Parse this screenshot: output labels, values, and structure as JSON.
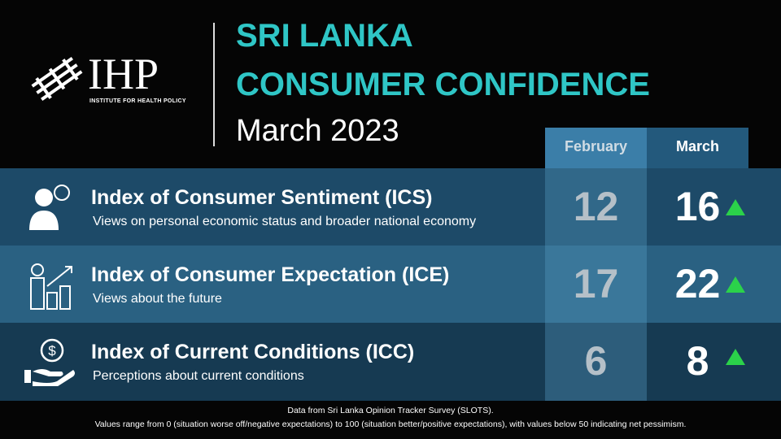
{
  "header": {
    "logo_text": "IHP",
    "logo_subtitle": "INSTITUTE FOR HEALTH POLICY",
    "title_line1": "SRI LANKA",
    "title_line2": "CONSUMER CONFIDENCE",
    "subtitle": "March 2023"
  },
  "table": {
    "columns": [
      "February",
      "March"
    ],
    "rows": [
      {
        "title": "Index of Consumer Sentiment (ICS)",
        "description": "Views on personal economic status and broader national economy",
        "values": [
          12,
          16
        ]
      },
      {
        "title": "Index of Consumer Expectation (ICE)",
        "description": "Views about the future",
        "values": [
          17,
          22
        ]
      },
      {
        "title": "Index of Current Conditions (ICC)",
        "description": "Perceptions about current conditions",
        "values": [
          6,
          8
        ]
      }
    ]
  },
  "footer": {
    "line1": "Data from Sri Lanka Opinion Tracker Survey (SLOTS).",
    "line2": "Values range from 0 (situation worse off/negative expectations) to 100 (situation better/positive expectations), with values below 50 indicating net pessimism."
  }
}
